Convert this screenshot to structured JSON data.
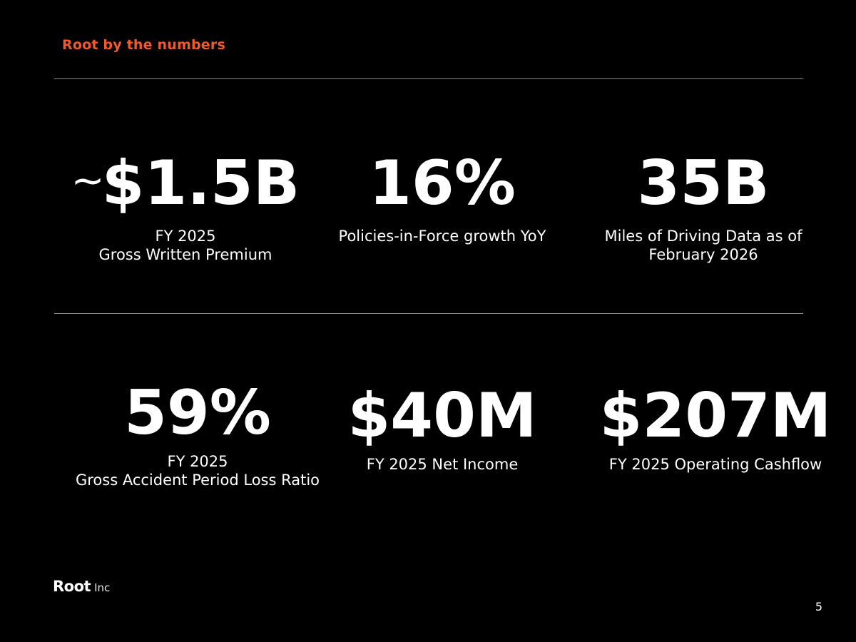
{
  "header": {
    "title": "Root by the numbers"
  },
  "stats": {
    "gwp": {
      "prefix": "~",
      "value": "$1.5B",
      "label": "FY 2025\nGross Written Premium"
    },
    "pif": {
      "value": "16%",
      "label": "Policies-in-Force growth YoY"
    },
    "miles": {
      "value": "35B",
      "label": "Miles of Driving Data as of\nFebruary 2026"
    },
    "loss": {
      "value": "59%",
      "label": "FY 2025\nGross Accident Period Loss Ratio"
    },
    "net_income": {
      "value": "$40M",
      "label": "FY 2025 Net Income"
    },
    "cashflow": {
      "value": "$207M",
      "label": "FY 2025 Operating Cashflow"
    }
  },
  "footer": {
    "logo_word": "Root",
    "logo_suffix": "Inc",
    "page_number": "5"
  },
  "colors": {
    "background": "#000000",
    "accent": "#f15a29",
    "text": "#ffffff",
    "rule": "#8a8a8a"
  }
}
